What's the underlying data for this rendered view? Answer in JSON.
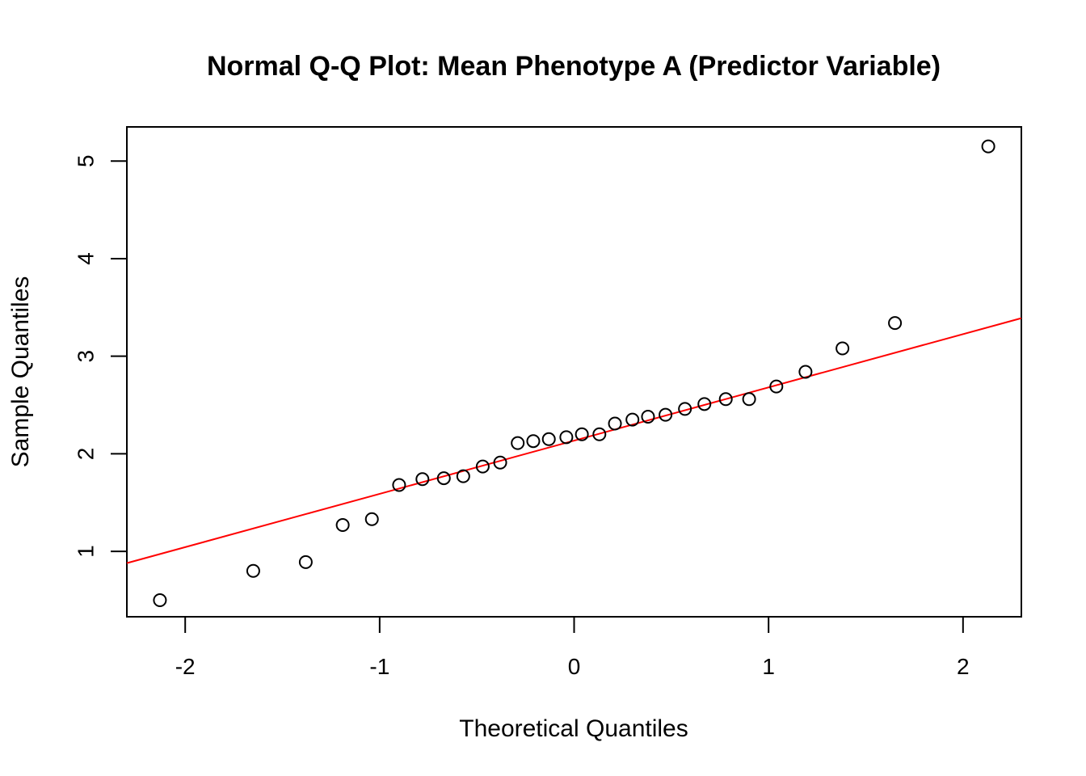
{
  "chart_data": {
    "type": "scatter",
    "title": "Normal Q-Q Plot: Mean Phenotype A (Predictor Variable)",
    "xlabel": "Theoretical Quantiles",
    "ylabel": "Sample Quantiles",
    "xlim": [
      -2.3,
      2.3
    ],
    "ylim": [
      0.33,
      5.35
    ],
    "x_ticks": [
      -2,
      -1,
      0,
      1,
      2
    ],
    "y_ticks": [
      1,
      2,
      3,
      4,
      5
    ],
    "grid": false,
    "legend": "none",
    "point_color": "#000000",
    "line_color": "#ff0000",
    "points": [
      {
        "x": -2.13,
        "y": 0.5
      },
      {
        "x": -1.65,
        "y": 0.8
      },
      {
        "x": -1.38,
        "y": 0.89
      },
      {
        "x": -1.19,
        "y": 1.27
      },
      {
        "x": -1.04,
        "y": 1.33
      },
      {
        "x": -0.9,
        "y": 1.68
      },
      {
        "x": -0.78,
        "y": 1.74
      },
      {
        "x": -0.67,
        "y": 1.75
      },
      {
        "x": -0.57,
        "y": 1.77
      },
      {
        "x": -0.47,
        "y": 1.87
      },
      {
        "x": -0.38,
        "y": 1.91
      },
      {
        "x": -0.29,
        "y": 2.11
      },
      {
        "x": -0.21,
        "y": 2.13
      },
      {
        "x": -0.13,
        "y": 2.15
      },
      {
        "x": -0.04,
        "y": 2.17
      },
      {
        "x": 0.04,
        "y": 2.2
      },
      {
        "x": 0.13,
        "y": 2.2
      },
      {
        "x": 0.21,
        "y": 2.31
      },
      {
        "x": 0.3,
        "y": 2.35
      },
      {
        "x": 0.38,
        "y": 2.38
      },
      {
        "x": 0.47,
        "y": 2.4
      },
      {
        "x": 0.57,
        "y": 2.46
      },
      {
        "x": 0.67,
        "y": 2.51
      },
      {
        "x": 0.78,
        "y": 2.56
      },
      {
        "x": 0.9,
        "y": 2.56
      },
      {
        "x": 1.04,
        "y": 2.69
      },
      {
        "x": 1.19,
        "y": 2.84
      },
      {
        "x": 1.38,
        "y": 3.08
      },
      {
        "x": 1.65,
        "y": 3.34
      },
      {
        "x": 2.13,
        "y": 5.15
      }
    ],
    "reference_line": {
      "start": {
        "x": -2.3,
        "y": 0.88
      },
      "end": {
        "x": 2.3,
        "y": 3.39
      }
    }
  }
}
